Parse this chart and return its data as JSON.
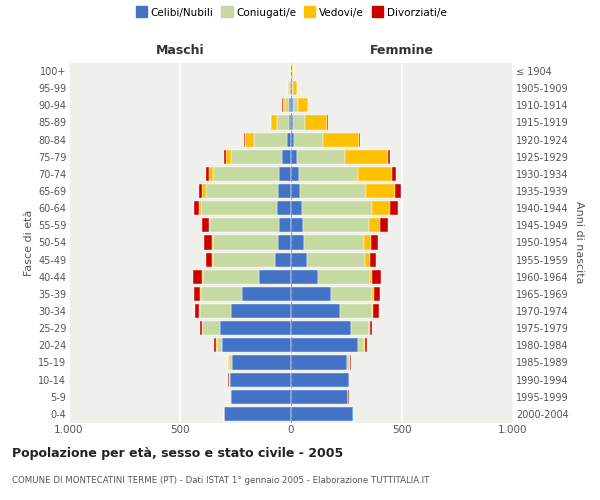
{
  "age_groups": [
    "0-4",
    "5-9",
    "10-14",
    "15-19",
    "20-24",
    "25-29",
    "30-34",
    "35-39",
    "40-44",
    "45-49",
    "50-54",
    "55-59",
    "60-64",
    "65-69",
    "70-74",
    "75-79",
    "80-84",
    "85-89",
    "90-94",
    "95-99",
    "100+"
  ],
  "birth_years": [
    "2000-2004",
    "1995-1999",
    "1990-1994",
    "1985-1989",
    "1980-1984",
    "1975-1979",
    "1970-1974",
    "1965-1969",
    "1960-1964",
    "1955-1959",
    "1950-1954",
    "1945-1949",
    "1940-1944",
    "1935-1939",
    "1930-1934",
    "1925-1929",
    "1920-1924",
    "1915-1919",
    "1910-1914",
    "1905-1909",
    "≤ 1904"
  ],
  "maschi_celibi": [
    300,
    270,
    275,
    265,
    310,
    320,
    270,
    220,
    145,
    70,
    60,
    55,
    65,
    60,
    55,
    40,
    20,
    10,
    8,
    4,
    2
  ],
  "maschi_coniugati": [
    2,
    3,
    5,
    15,
    25,
    80,
    140,
    185,
    250,
    280,
    290,
    310,
    340,
    325,
    295,
    230,
    145,
    55,
    18,
    5,
    2
  ],
  "maschi_vedovi": [
    1,
    1,
    1,
    2,
    5,
    3,
    3,
    5,
    5,
    5,
    5,
    5,
    10,
    15,
    20,
    25,
    40,
    25,
    12,
    3,
    1
  ],
  "maschi_divorziati": [
    1,
    1,
    1,
    2,
    5,
    8,
    20,
    25,
    40,
    30,
    35,
    30,
    20,
    15,
    15,
    8,
    5,
    2,
    1,
    0,
    0
  ],
  "femmine_celibi": [
    280,
    255,
    260,
    250,
    300,
    270,
    220,
    180,
    120,
    70,
    60,
    55,
    50,
    40,
    35,
    25,
    15,
    10,
    10,
    5,
    2
  ],
  "femmine_coniugati": [
    2,
    3,
    5,
    15,
    30,
    80,
    145,
    185,
    235,
    265,
    270,
    295,
    315,
    300,
    265,
    220,
    130,
    55,
    20,
    5,
    2
  ],
  "femmine_vedovi": [
    1,
    1,
    1,
    3,
    5,
    5,
    5,
    8,
    10,
    20,
    30,
    50,
    80,
    130,
    155,
    190,
    160,
    95,
    45,
    15,
    5
  ],
  "femmine_divorziati": [
    1,
    1,
    2,
    3,
    8,
    10,
    25,
    30,
    40,
    30,
    30,
    35,
    35,
    25,
    18,
    12,
    8,
    5,
    2,
    0,
    0
  ],
  "color_celibi": "#4472c4",
  "color_coniugati": "#c5d9a0",
  "color_vedovi": "#ffc000",
  "color_divorziati": "#cc0000",
  "title": "Popolazione per età, sesso e stato civile - 2005",
  "subtitle": "COMUNE DI MONTECATINI TERME (PT) - Dati ISTAT 1° gennaio 2005 - Elaborazione TUTTITALIA.IT",
  "xlabel_left": "Maschi",
  "xlabel_right": "Femmine",
  "ylabel_left": "Fasce di età",
  "ylabel_right": "Anni di nascita",
  "xlim": 1000,
  "bg_color": "#ffffff",
  "plot_bg_color": "#efefeb",
  "grid_color": "#ffffff"
}
